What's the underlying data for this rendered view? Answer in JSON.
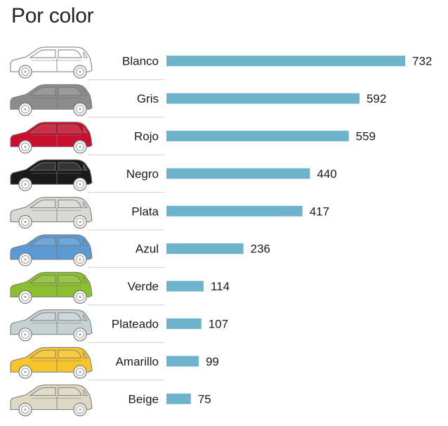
{
  "chart_data": {
    "type": "bar",
    "orientation": "horizontal",
    "title": "Por color",
    "xlabel": "",
    "ylabel": "",
    "xlim": [
      0,
      732
    ],
    "grid": false,
    "legend": "none",
    "categories": [
      "Blanco",
      "Gris",
      "Rojo",
      "Negro",
      "Plata",
      "Azul",
      "Verde",
      "Plateado",
      "Amarillo",
      "Beige"
    ],
    "values": [
      732,
      592,
      559,
      440,
      417,
      236,
      114,
      107,
      99,
      75
    ],
    "icon": "car-icon",
    "car_colors": [
      "#ffffff",
      "#8c8c8c",
      "#c8102e",
      "#1a1a1a",
      "#d9d9d4",
      "#5b9bd5",
      "#8cbf2f",
      "#c6d1d3",
      "#f7c52b",
      "#dcd8c3"
    ],
    "bar_color": "#6db3cc",
    "outline_color": "#777777"
  }
}
